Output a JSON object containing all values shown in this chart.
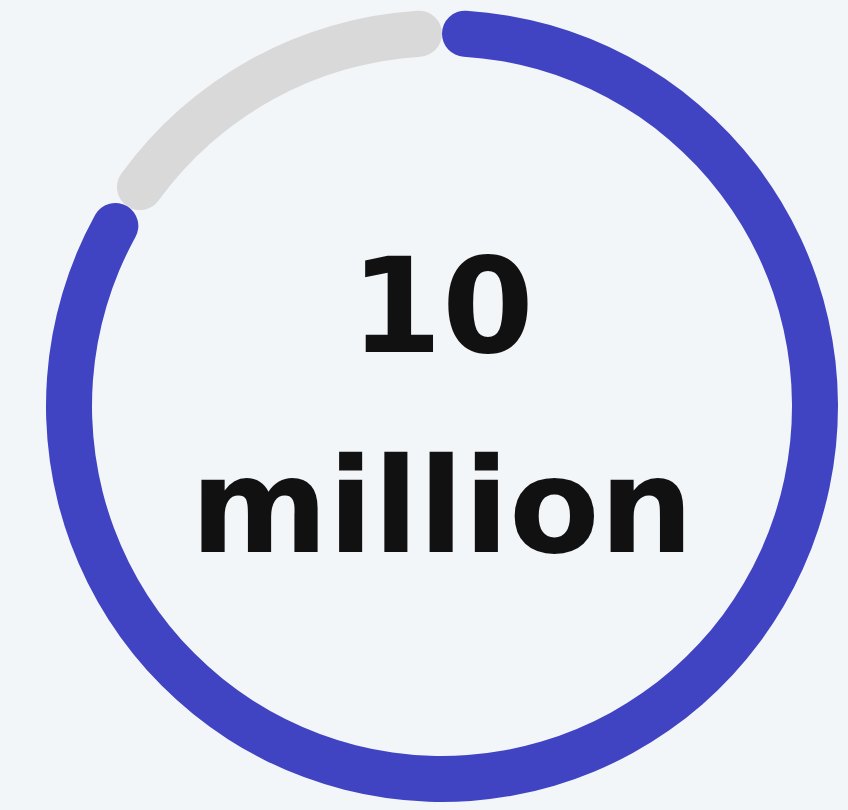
{
  "chart_data": {
    "type": "donut",
    "categories": [
      null,
      null
    ],
    "values": [
      84,
      16
    ],
    "colors": [
      "#4144c2",
      "#d9d9d9"
    ],
    "annotations": [
      "10 million"
    ]
  }
}
